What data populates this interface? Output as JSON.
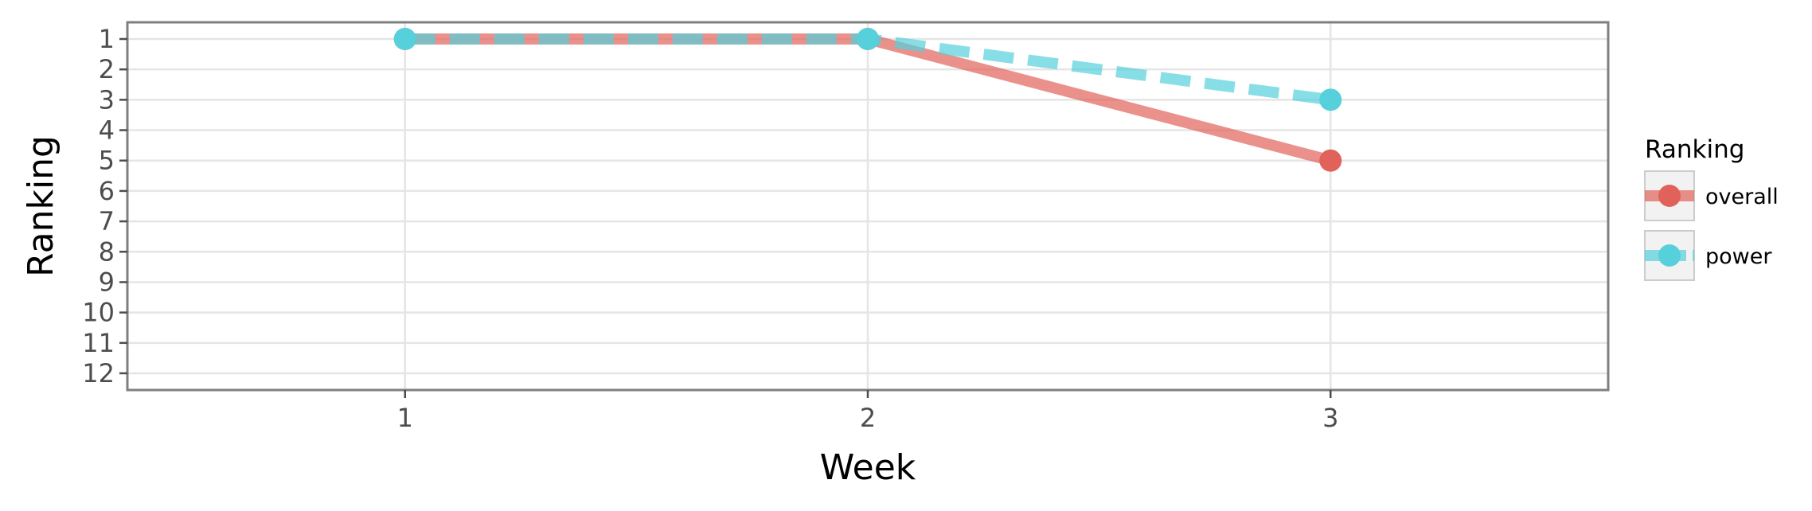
{
  "chart_data": {
    "type": "line",
    "xlabel": "Week",
    "ylabel": "Ranking",
    "x": [
      1,
      2,
      3
    ],
    "xlim": [
      0.4,
      3.6
    ],
    "ylim": [
      12.55,
      0.45
    ],
    "y_reversed": true,
    "x_ticks": [
      "1",
      "2",
      "3"
    ],
    "y_ticks": [
      "1",
      "2",
      "3",
      "4",
      "5",
      "6",
      "7",
      "8",
      "9",
      "10",
      "11",
      "12"
    ],
    "grid": true,
    "legend": {
      "title": "Ranking",
      "placement": "right",
      "entries": [
        {
          "label": "overall"
        },
        {
          "label": "power"
        }
      ]
    },
    "series": [
      {
        "name": "overall",
        "values": [
          1,
          1,
          5
        ],
        "color": "#e1625b",
        "linestyle": "solid"
      },
      {
        "name": "power",
        "values": [
          1,
          1,
          3
        ],
        "color": "#56d0db",
        "linestyle": "dashed"
      }
    ]
  }
}
